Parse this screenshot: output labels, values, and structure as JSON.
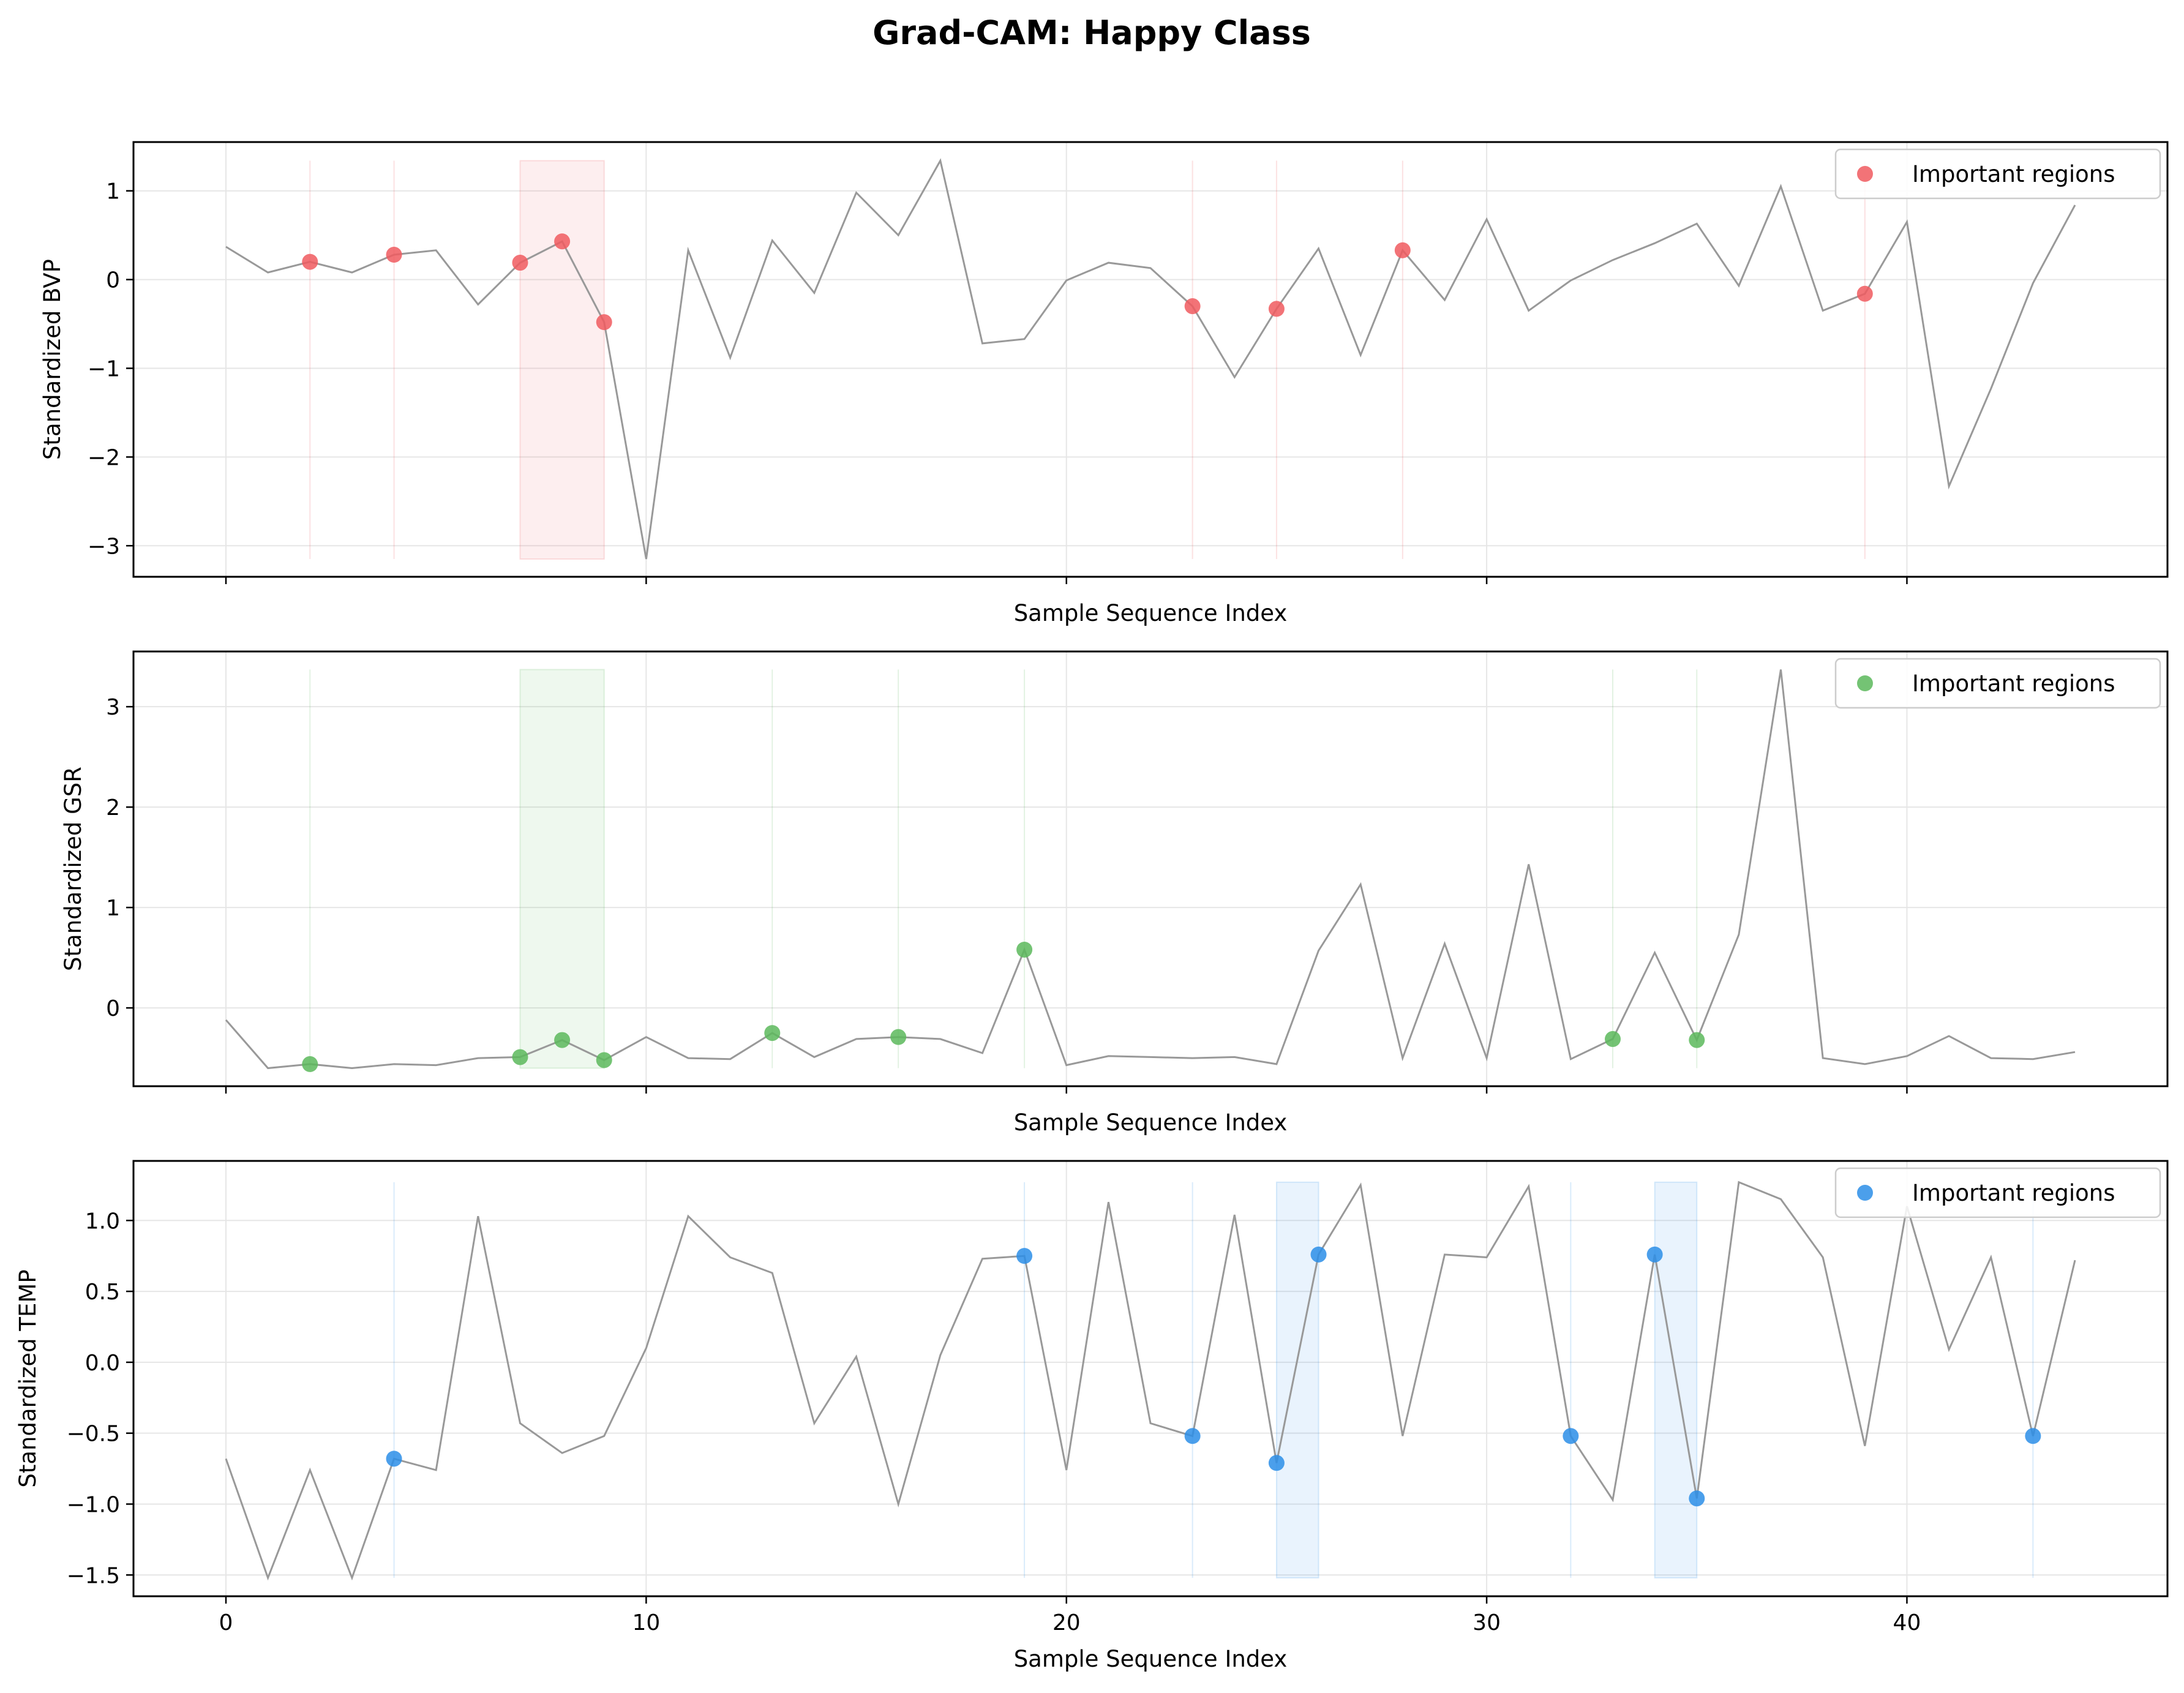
{
  "figure": {
    "title": "Grad-CAM: Happy Class"
  },
  "colors": {
    "line": "#999999",
    "BVP": "#f05a5f",
    "GSR": "#5cb85c",
    "TEMP": "#2b8ee8",
    "grid": "#e6e6e6"
  },
  "chart_data": [
    {
      "type": "line",
      "panel": "BVP",
      "xlabel": "Sample Sequence Index",
      "ylabel": "Standardized BVP",
      "show_xticklabels": false,
      "xlim": [
        -2.2,
        46.2
      ],
      "ylim": [
        -3.35,
        1.55
      ],
      "xticks": [
        0,
        10,
        20,
        30,
        40
      ],
      "yticks": [
        -3,
        -2,
        -1,
        0,
        1
      ],
      "ytick_labels": [
        "−3",
        "−2",
        "−1",
        "0",
        "1"
      ],
      "x": [
        0,
        1,
        2,
        3,
        4,
        5,
        6,
        7,
        8,
        9,
        10,
        11,
        12,
        13,
        14,
        15,
        16,
        17,
        18,
        19,
        20,
        21,
        22,
        23,
        24,
        25,
        26,
        27,
        28,
        29,
        30,
        31,
        32,
        33,
        34,
        35,
        36,
        37,
        38,
        39,
        40,
        41,
        42,
        43,
        44
      ],
      "y": [
        0.37,
        0.08,
        0.2,
        0.08,
        0.28,
        0.33,
        -0.28,
        0.19,
        0.43,
        -0.48,
        -3.15,
        0.33,
        -0.88,
        0.44,
        -0.15,
        0.98,
        0.5,
        1.34,
        -0.72,
        -0.67,
        -0.01,
        0.19,
        0.13,
        -0.3,
        -1.1,
        -0.33,
        0.35,
        -0.85,
        0.33,
        -0.23,
        0.68,
        -0.35,
        -0.01,
        0.22,
        0.41,
        0.63,
        -0.07,
        1.05,
        -0.35,
        -0.16,
        0.65,
        -2.33,
        -1.23,
        -0.04,
        0.84
      ],
      "important_points": [
        2,
        4,
        7,
        8,
        9,
        23,
        25,
        28,
        39
      ],
      "highlight_spans": [
        [
          7,
          9
        ]
      ],
      "vlines": [
        2,
        4,
        23,
        25,
        28,
        39
      ],
      "legend": {
        "label": "Important regions",
        "loc": "upper right"
      },
      "grid": true
    },
    {
      "type": "line",
      "panel": "GSR",
      "xlabel": "Sample Sequence Index",
      "ylabel": "Standardized GSR",
      "show_xticklabels": false,
      "xlim": [
        -2.2,
        46.2
      ],
      "ylim": [
        -0.78,
        3.55
      ],
      "xticks": [
        0,
        10,
        20,
        30,
        40
      ],
      "yticks": [
        0,
        1,
        2,
        3
      ],
      "ytick_labels": [
        "0",
        "1",
        "2",
        "3"
      ],
      "x": [
        0,
        1,
        2,
        3,
        4,
        5,
        6,
        7,
        8,
        9,
        10,
        11,
        12,
        13,
        14,
        15,
        16,
        17,
        18,
        19,
        20,
        21,
        22,
        23,
        24,
        25,
        26,
        27,
        28,
        29,
        30,
        31,
        32,
        33,
        34,
        35,
        36,
        37,
        38,
        39,
        40,
        41,
        42,
        43,
        44
      ],
      "y": [
        -0.12,
        -0.6,
        -0.56,
        -0.6,
        -0.56,
        -0.57,
        -0.5,
        -0.49,
        -0.32,
        -0.52,
        -0.29,
        -0.5,
        -0.51,
        -0.25,
        -0.49,
        -0.31,
        -0.29,
        -0.31,
        -0.45,
        0.58,
        -0.57,
        -0.48,
        -0.49,
        -0.5,
        -0.49,
        -0.56,
        0.57,
        1.23,
        -0.5,
        0.64,
        -0.5,
        1.43,
        -0.51,
        -0.31,
        0.55,
        -0.32,
        0.73,
        3.37,
        -0.5,
        -0.56,
        -0.48,
        -0.28,
        -0.5,
        -0.51,
        -0.44
      ],
      "important_points": [
        2,
        7,
        8,
        9,
        13,
        16,
        19,
        33,
        35
      ],
      "highlight_spans": [
        [
          7,
          9
        ]
      ],
      "vlines": [
        2,
        13,
        16,
        19,
        33,
        35
      ],
      "legend": {
        "label": "Important regions",
        "loc": "upper right"
      },
      "grid": true
    },
    {
      "type": "line",
      "panel": "TEMP",
      "xlabel": "Sample Sequence Index",
      "ylabel": "Standardized TEMP",
      "show_xticklabels": true,
      "xlim": [
        -2.2,
        46.2
      ],
      "ylim": [
        -1.65,
        1.42
      ],
      "xticks": [
        0,
        10,
        20,
        30,
        40
      ],
      "xtick_labels": [
        "0",
        "10",
        "20",
        "30",
        "40"
      ],
      "yticks": [
        -1.5,
        -1.0,
        -0.5,
        0.0,
        0.5,
        1.0
      ],
      "ytick_labels": [
        "−1.5",
        "−1.0",
        "−0.5",
        "0.0",
        "0.5",
        "1.0"
      ],
      "x": [
        0,
        1,
        2,
        3,
        4,
        5,
        6,
        7,
        8,
        9,
        10,
        11,
        12,
        13,
        14,
        15,
        16,
        17,
        18,
        19,
        20,
        21,
        22,
        23,
        24,
        25,
        26,
        27,
        28,
        29,
        30,
        31,
        32,
        33,
        34,
        35,
        36,
        37,
        38,
        39,
        40,
        41,
        42,
        43,
        44
      ],
      "y": [
        -0.68,
        -1.52,
        -0.76,
        -1.52,
        -0.68,
        -0.76,
        1.03,
        -0.43,
        -0.64,
        -0.52,
        0.1,
        1.03,
        0.74,
        0.63,
        -0.43,
        0.04,
        -1.0,
        0.05,
        0.73,
        0.75,
        -0.76,
        1.13,
        -0.43,
        -0.52,
        1.04,
        -0.71,
        0.76,
        1.25,
        -0.52,
        0.76,
        0.74,
        1.24,
        -0.52,
        -0.97,
        0.76,
        -0.96,
        1.27,
        1.15,
        0.74,
        -0.59,
        1.1,
        0.09,
        0.74,
        -0.52,
        0.72
      ],
      "important_points": [
        4,
        19,
        23,
        25,
        26,
        32,
        34,
        35,
        43
      ],
      "highlight_spans": [
        [
          25,
          26
        ],
        [
          34,
          35
        ]
      ],
      "vlines": [
        4,
        19,
        23,
        32,
        43
      ],
      "legend": {
        "label": "Important regions",
        "loc": "upper right"
      },
      "grid": true
    }
  ]
}
